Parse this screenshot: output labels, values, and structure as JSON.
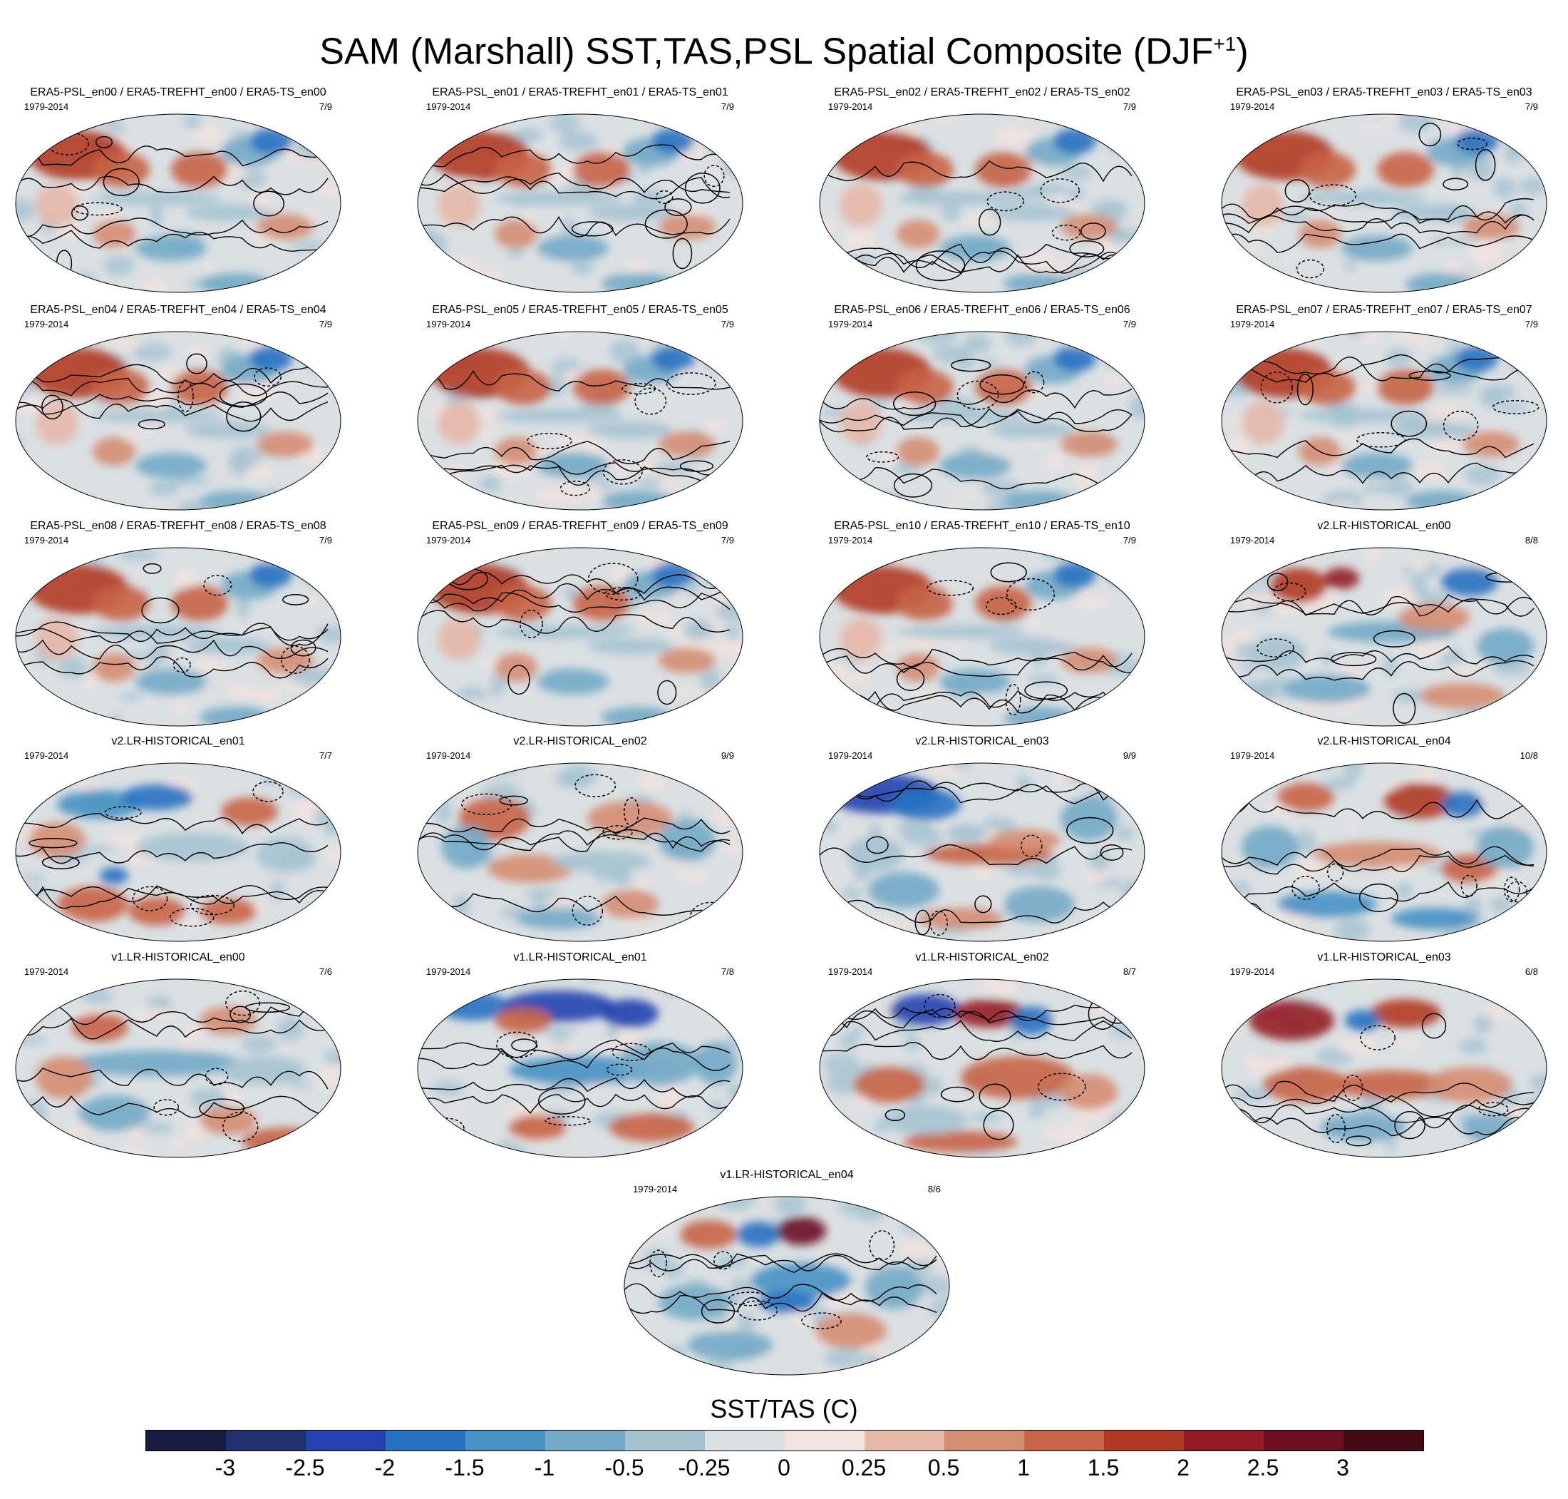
{
  "title": {
    "main": "SAM (Marshall) SST,TAS,PSL Spatial Composite (DJF",
    "superscript": "+1",
    "close": ")"
  },
  "panels": [
    {
      "title": "ERA5-PSL_en00 / ERA5-TREFHT_en00 / ERA5-TS_en00",
      "years": "1979-2014",
      "count": "7/9",
      "style": "era5"
    },
    {
      "title": "ERA5-PSL_en01 / ERA5-TREFHT_en01 / ERA5-TS_en01",
      "years": "1979-2014",
      "count": "7/9",
      "style": "era5"
    },
    {
      "title": "ERA5-PSL_en02 / ERA5-TREFHT_en02 / ERA5-TS_en02",
      "years": "1979-2014",
      "count": "7/9",
      "style": "era5"
    },
    {
      "title": "ERA5-PSL_en03 / ERA5-TREFHT_en03 / ERA5-TS_en03",
      "years": "1979-2014",
      "count": "7/9",
      "style": "era5"
    },
    {
      "title": "ERA5-PSL_en04 / ERA5-TREFHT_en04 / ERA5-TS_en04",
      "years": "1979-2014",
      "count": "7/9",
      "style": "era5"
    },
    {
      "title": "ERA5-PSL_en05 / ERA5-TREFHT_en05 / ERA5-TS_en05",
      "years": "1979-2014",
      "count": "7/9",
      "style": "era5"
    },
    {
      "title": "ERA5-PSL_en06 / ERA5-TREFHT_en06 / ERA5-TS_en06",
      "years": "1979-2014",
      "count": "7/9",
      "style": "era5"
    },
    {
      "title": "ERA5-PSL_en07 / ERA5-TREFHT_en07 / ERA5-TS_en07",
      "years": "1979-2014",
      "count": "7/9",
      "style": "era5"
    },
    {
      "title": "ERA5-PSL_en08 / ERA5-TREFHT_en08 / ERA5-TS_en08",
      "years": "1979-2014",
      "count": "7/9",
      "style": "era5"
    },
    {
      "title": "ERA5-PSL_en09 / ERA5-TREFHT_en09 / ERA5-TS_en09",
      "years": "1979-2014",
      "count": "7/9",
      "style": "era5"
    },
    {
      "title": "ERA5-PSL_en10 / ERA5-TREFHT_en10 / ERA5-TS_en10",
      "years": "1979-2014",
      "count": "7/9",
      "style": "era5"
    },
    {
      "title": "v2.LR-HISTORICAL_en00",
      "years": "1979-2014",
      "count": "8/8",
      "style": "v2a"
    },
    {
      "title": "v2.LR-HISTORICAL_en01",
      "years": "1979-2014",
      "count": "7/7",
      "style": "v2b"
    },
    {
      "title": "v2.LR-HISTORICAL_en02",
      "years": "1979-2014",
      "count": "9/9",
      "style": "v2c"
    },
    {
      "title": "v2.LR-HISTORICAL_en03",
      "years": "1979-2014",
      "count": "9/9",
      "style": "v2d"
    },
    {
      "title": "v2.LR-HISTORICAL_en04",
      "years": "1979-2014",
      "count": "10/8",
      "style": "v2e"
    },
    {
      "title": "v1.LR-HISTORICAL_en00",
      "years": "1979-2014",
      "count": "7/6",
      "style": "v1a"
    },
    {
      "title": "v1.LR-HISTORICAL_en01",
      "years": "1979-2014",
      "count": "7/8",
      "style": "v1b"
    },
    {
      "title": "v1.LR-HISTORICAL_en02",
      "years": "1979-2014",
      "count": "8/7",
      "style": "v1c"
    },
    {
      "title": "v1.LR-HISTORICAL_en03",
      "years": "1979-2014",
      "count": "6/8",
      "style": "v1d"
    },
    {
      "title": "v1.LR-HISTORICAL_en04",
      "years": "1979-2014",
      "count": "8/6",
      "style": "v1e"
    }
  ],
  "colorbar": {
    "title": "SST/TAS (C)",
    "colors": [
      "#171b3f",
      "#21306e",
      "#2442b0",
      "#2771c2",
      "#4791c4",
      "#74aac7",
      "#a6c3d1",
      "#dbe0e3",
      "#f2e3df",
      "#e6b8a8",
      "#d58d72",
      "#c86447",
      "#b13a24",
      "#931c24",
      "#6c0f22",
      "#440a14"
    ],
    "ticks": [
      "-3",
      "-2.5",
      "-2",
      "-1.5",
      "-1",
      "-0.5",
      "-0.25",
      "0",
      "0.25",
      "0.5",
      "1",
      "1.5",
      "2",
      "2.5",
      "3"
    ]
  }
}
